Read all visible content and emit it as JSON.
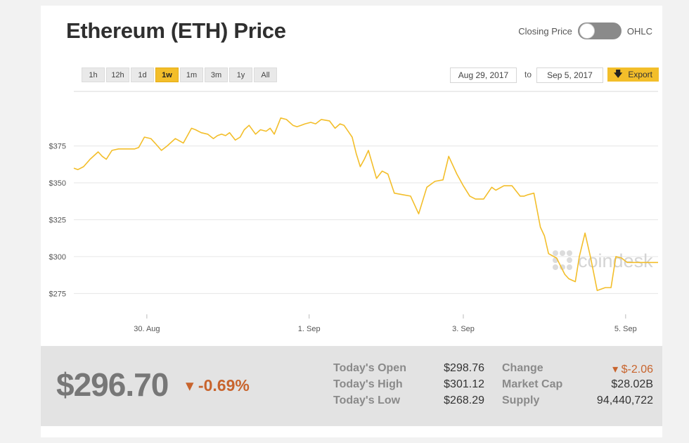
{
  "title": "Ethereum (ETH) Price",
  "toggle": {
    "left_label": "Closing Price",
    "right_label": "OHLC"
  },
  "ranges": [
    "1h",
    "12h",
    "1d",
    "1w",
    "1m",
    "3m",
    "1y",
    "All"
  ],
  "active_range": "1w",
  "date_from": "Aug 29, 2017",
  "date_to": "Sep 5, 2017",
  "to_label": "to",
  "export_label": "Export",
  "watermark": "coindesk",
  "colors": {
    "accent": "#f3be2a",
    "negative": "#c8642d"
  },
  "chart_data": {
    "type": "line",
    "title": "",
    "xlabel": "",
    "ylabel": "",
    "ylim": [
      258,
      412
    ],
    "yticks": [
      275,
      300,
      325,
      350,
      375
    ],
    "ytick_labels": [
      "$275",
      "$300",
      "$325",
      "$350",
      "$375"
    ],
    "xlim": [
      0,
      7.2
    ],
    "xticks": [
      0.9,
      2.9,
      4.8,
      6.8
    ],
    "xtick_labels": [
      "30. Aug",
      "1. Sep",
      "3. Sep",
      "5. Sep"
    ],
    "grid": true,
    "series": [
      {
        "name": "",
        "color": "#f3be2a",
        "x": [
          0,
          0.05,
          0.12,
          0.2,
          0.3,
          0.35,
          0.4,
          0.47,
          0.55,
          0.6,
          0.68,
          0.75,
          0.8,
          0.87,
          0.95,
          1.0,
          1.08,
          1.15,
          1.25,
          1.35,
          1.45,
          1.5,
          1.57,
          1.65,
          1.72,
          1.77,
          1.82,
          1.87,
          1.92,
          1.99,
          2.05,
          2.1,
          2.16,
          2.24,
          2.3,
          2.37,
          2.42,
          2.47,
          2.55,
          2.62,
          2.7,
          2.75,
          2.8,
          2.85,
          2.92,
          2.98,
          3.05,
          3.15,
          3.22,
          3.28,
          3.33,
          3.38,
          3.43,
          3.48,
          3.53,
          3.58,
          3.63,
          3.73,
          3.8,
          3.87,
          3.95,
          4.05,
          4.15,
          4.25,
          4.35,
          4.45,
          4.55,
          4.62,
          4.72,
          4.8,
          4.88,
          4.95,
          5.05,
          5.15,
          5.2,
          5.3,
          5.4,
          5.5,
          5.55,
          5.6,
          5.67,
          5.75,
          5.8,
          5.85,
          5.95,
          6.05,
          6.1,
          6.18,
          6.23,
          6.3,
          6.37,
          6.45,
          6.55,
          6.62,
          6.68,
          6.75,
          6.82,
          6.89,
          6.96,
          7.02,
          7.06,
          7.12,
          7.2
        ],
        "y": [
          360,
          359,
          361,
          366,
          371,
          368,
          366,
          372,
          373,
          373,
          373,
          373,
          374,
          381,
          380,
          377,
          372,
          375,
          380,
          377,
          387,
          386,
          384,
          383,
          380,
          382,
          383,
          382,
          384,
          379,
          381,
          386,
          389,
          383,
          386,
          385,
          387,
          383,
          394,
          393,
          389,
          388,
          389,
          390,
          391,
          390,
          393,
          392,
          387,
          390,
          389,
          385,
          381,
          370,
          361,
          366,
          372,
          353,
          358,
          356,
          343,
          342,
          341,
          329,
          347,
          351,
          352,
          368,
          356,
          348,
          341,
          339,
          339,
          347,
          345,
          348,
          348,
          341,
          341,
          342,
          343,
          320,
          314,
          302,
          299,
          288,
          285,
          283,
          300,
          316,
          299,
          277,
          279,
          279,
          300,
          299,
          296,
          296,
          296,
          296,
          296,
          296,
          296
        ]
      }
    ]
  },
  "footer": {
    "price": "$296.70",
    "change_pct": "▾ -0.69%",
    "stats_left": [
      {
        "label": "Today's Open",
        "value": "$298.76"
      },
      {
        "label": "Today's High",
        "value": "$301.12"
      },
      {
        "label": "Today's Low",
        "value": "$268.29"
      }
    ],
    "stats_right": [
      {
        "label": "Change",
        "value": "▾ $-2.06"
      },
      {
        "label": "Market Cap",
        "value": "$28.02B"
      },
      {
        "label": "Supply",
        "value": "94,440,722"
      }
    ]
  }
}
